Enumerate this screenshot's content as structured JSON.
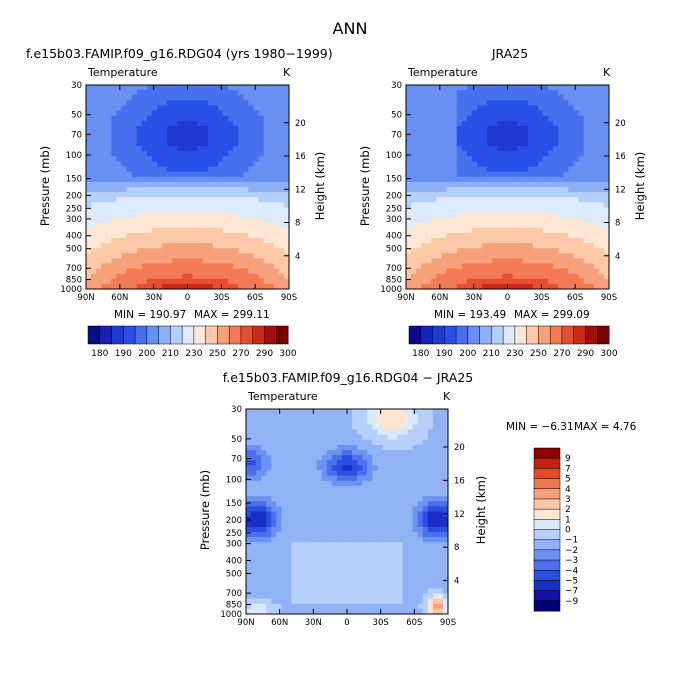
{
  "page_title": "ANN",
  "colors": {
    "warm_scale": [
      "#0a0a8c",
      "#1620b4",
      "#1e3ad2",
      "#2850e6",
      "#4670ee",
      "#6890f2",
      "#8cb0f6",
      "#b4d0fa",
      "#dcebfd",
      "#fde6d2",
      "#fbc8a8",
      "#f6a07c",
      "#f27a55",
      "#e6502e",
      "#cc2a18",
      "#a01008",
      "#780000"
    ],
    "anom_scale": [
      "#00007a",
      "#1010a8",
      "#1a2fc8",
      "#2a4ee0",
      "#4a70ec",
      "#6c92f2",
      "#92b2f6",
      "#b6d0fa",
      "#dbe9fc",
      "#fde5d0",
      "#fbc6a6",
      "#f6a07c",
      "#f07850",
      "#e44a28",
      "#c8200e",
      "#8c0000"
    ]
  },
  "chart_data": [
    {
      "type": "heatmap",
      "title": "f.e15b03.FAMIP.f09_g16.RDG04 (yrs 1980−1999)",
      "variable": "Temperature",
      "units": "K",
      "ylabel": "Pressure (mb)",
      "ylabel_right": "Height (km)",
      "x_ticks": [
        "90N",
        "60N",
        "30N",
        "0",
        "30S",
        "60S",
        "90S"
      ],
      "y_ticks": [
        30,
        50,
        70,
        100,
        150,
        200,
        250,
        300,
        400,
        500,
        700,
        850,
        1000
      ],
      "height_ticks": [
        20,
        16,
        12,
        8,
        4
      ],
      "min_label": "MIN = 190.97",
      "max_label": "MAX = 299.11",
      "min": 190.97,
      "max": 299.11
    },
    {
      "type": "heatmap",
      "title": "JRA25",
      "variable": "Temperature",
      "units": "K",
      "ylabel": "Pressure (mb)",
      "ylabel_right": "Height (km)",
      "x_ticks": [
        "90N",
        "60N",
        "30N",
        "0",
        "30S",
        "60S",
        "90S"
      ],
      "y_ticks": [
        30,
        50,
        70,
        100,
        150,
        200,
        250,
        300,
        400,
        500,
        700,
        850,
        1000
      ],
      "height_ticks": [
        20,
        16,
        12,
        8,
        4
      ],
      "min_label": "MIN = 193.49",
      "max_label": "MAX = 299.09",
      "min": 193.49,
      "max": 299.09
    },
    {
      "type": "heatmap",
      "title": "f.e15b03.FAMIP.f09_g16.RDG04 − JRA25",
      "variable": "Temperature",
      "units": "K",
      "ylabel": "Pressure (mb)",
      "ylabel_right": "Height (km)",
      "x_ticks": [
        "90N",
        "60N",
        "30N",
        "0",
        "30S",
        "60S",
        "90S"
      ],
      "y_ticks": [
        30,
        50,
        70,
        100,
        150,
        200,
        250,
        300,
        400,
        500,
        700,
        850,
        1000
      ],
      "height_ticks": [
        20,
        16,
        12,
        8,
        4
      ],
      "min_label": "MIN =   −6.31",
      "max_label": "MAX =    4.76",
      "min": -6.31,
      "max": 4.76
    }
  ],
  "colorbar_abs": {
    "labels": [
      "180",
      "190",
      "200",
      "210",
      "230",
      "250",
      "270",
      "290",
      "300"
    ]
  },
  "colorbar_diff": {
    "labels": [
      "9",
      "7",
      "5",
      "4",
      "3",
      "2",
      "1",
      "0",
      "−1",
      "−2",
      "−3",
      "−4",
      "−5",
      "−7",
      "−9"
    ]
  }
}
